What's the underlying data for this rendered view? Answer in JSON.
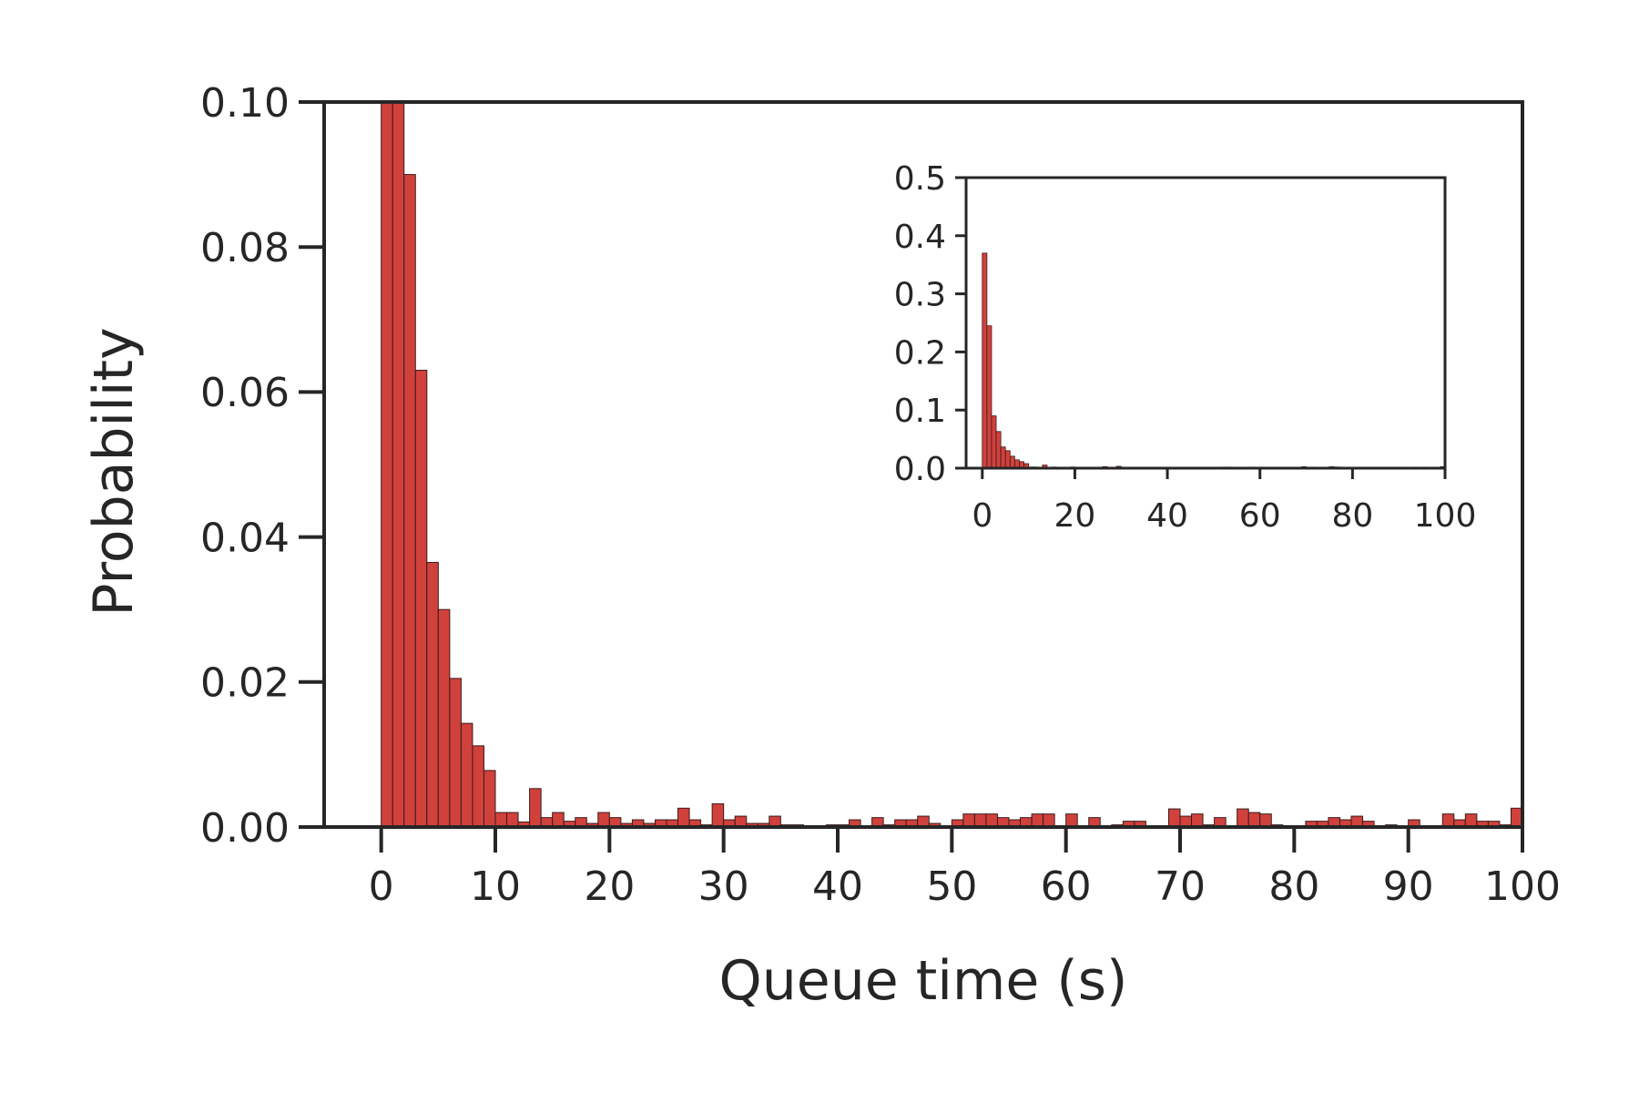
{
  "chart_data": [
    {
      "id": "main",
      "type": "bar",
      "xlabel": "Queue time (s)",
      "ylabel": "Probability",
      "xlim": [
        -5,
        100
      ],
      "ylim": [
        0,
        0.1
      ],
      "xticks": [
        0,
        10,
        20,
        30,
        40,
        50,
        60,
        70,
        80,
        90,
        100
      ],
      "yticks": [
        0.0,
        0.02,
        0.04,
        0.06,
        0.08,
        0.1
      ],
      "ytick_labels": [
        "0.00",
        "0.02",
        "0.04",
        "0.06",
        "0.08",
        "0.10"
      ],
      "grid": false,
      "color": "#d1413c",
      "bin_width": 1,
      "x": [
        0,
        1,
        2,
        3,
        4,
        5,
        6,
        7,
        8,
        9,
        10,
        11,
        12,
        13,
        14,
        15,
        16,
        17,
        18,
        19,
        20,
        21,
        22,
        23,
        24,
        25,
        26,
        27,
        28,
        29,
        30,
        31,
        32,
        33,
        34,
        35,
        36,
        37,
        38,
        39,
        40,
        41,
        42,
        43,
        44,
        45,
        46,
        47,
        48,
        49,
        50,
        51,
        52,
        53,
        54,
        55,
        56,
        57,
        58,
        59,
        60,
        61,
        62,
        63,
        64,
        65,
        66,
        67,
        68,
        69,
        70,
        71,
        72,
        73,
        74,
        75,
        76,
        77,
        78,
        79,
        80,
        81,
        82,
        83,
        84,
        85,
        86,
        87,
        88,
        89,
        90,
        91,
        92,
        93,
        94,
        95,
        96,
        97,
        98,
        99
      ],
      "values": [
        0.37,
        0.245,
        0.09,
        0.063,
        0.0365,
        0.03,
        0.0205,
        0.0143,
        0.0112,
        0.0078,
        0.002,
        0.002,
        0.0007,
        0.0053,
        0.0013,
        0.002,
        0.0008,
        0.0013,
        0.0005,
        0.002,
        0.0013,
        0.0005,
        0.001,
        0.0005,
        0.001,
        0.001,
        0.0026,
        0.001,
        0.0003,
        0.0032,
        0.001,
        0.0015,
        0.0005,
        0.0005,
        0.0015,
        0.0003,
        0.0003,
        0.0,
        0.0,
        0.0003,
        0.0003,
        0.001,
        0.0,
        0.0013,
        0.0003,
        0.001,
        0.001,
        0.0015,
        0.0005,
        0.0,
        0.001,
        0.0018,
        0.0018,
        0.0018,
        0.0013,
        0.001,
        0.0013,
        0.0018,
        0.0018,
        0.0,
        0.0018,
        0.0,
        0.0013,
        0.0,
        0.0003,
        0.0008,
        0.0008,
        0.0,
        0.0,
        0.0025,
        0.0015,
        0.0018,
        0.0003,
        0.0013,
        0.0,
        0.0025,
        0.002,
        0.0018,
        0.0003,
        0.0,
        0.0,
        0.0008,
        0.0008,
        0.0013,
        0.001,
        0.0015,
        0.0008,
        0.0,
        0.0003,
        0.0,
        0.001,
        0.0,
        0.0,
        0.0018,
        0.001,
        0.0018,
        0.0008,
        0.0008,
        0.0003,
        0.0026
      ]
    },
    {
      "id": "inset",
      "type": "bar",
      "xlabel": "",
      "ylabel": "",
      "xlim": [
        -3.5,
        100
      ],
      "ylim": [
        0,
        0.5
      ],
      "xticks": [
        0,
        20,
        40,
        60,
        80,
        100
      ],
      "yticks": [
        0.0,
        0.1,
        0.2,
        0.3,
        0.4,
        0.5
      ],
      "ytick_labels": [
        "0.0",
        "0.1",
        "0.2",
        "0.3",
        "0.4",
        "0.5"
      ],
      "grid": false,
      "color": "#d1413c",
      "same_data_as": "main"
    }
  ]
}
